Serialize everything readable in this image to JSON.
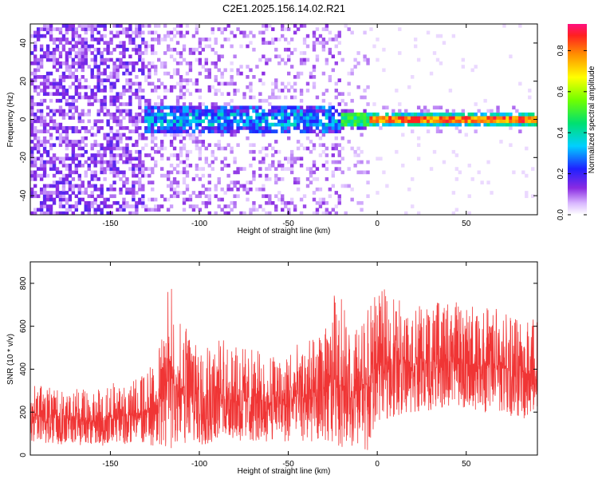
{
  "title": "C2E1.2025.156.14.02.R21",
  "chart_data": [
    {
      "type": "heatmap",
      "title": "C2E1.2025.156.14.02.R21",
      "xlabel": "Height of straight line (km)",
      "ylabel": "Frequency (Hz)",
      "xlim": [
        -195,
        90
      ],
      "ylim": [
        -50,
        50
      ],
      "x_ticks": [
        -150,
        -100,
        -50,
        0,
        50
      ],
      "y_ticks": [
        -40,
        -20,
        0,
        20,
        40
      ],
      "colorbar": {
        "label": "Normalized spectral amplitude",
        "range": [
          0,
          0.93
        ],
        "ticks": [
          0.0,
          0.2,
          0.4,
          0.6,
          0.8
        ]
      },
      "description_regions": [
        {
          "x_range": [
            -195,
            -130
          ],
          "freq_range": [
            -50,
            50
          ],
          "amplitude": 0.15
        },
        {
          "x_range": [
            -130,
            -20
          ],
          "freq_range": [
            -8,
            8
          ],
          "amplitude": 0.3
        },
        {
          "x_range": [
            -20,
            90
          ],
          "freq_range": [
            -2,
            2
          ],
          "amplitude": 0.85
        }
      ]
    },
    {
      "type": "line",
      "xlabel": "Height of straight line (km)",
      "ylabel": "SNR (10 * v/v)",
      "xlim": [
        -195,
        90
      ],
      "ylim": [
        0,
        900
      ],
      "x_ticks": [
        -150,
        -100,
        -50,
        0,
        50
      ],
      "y_ticks": [
        0,
        200,
        400,
        600,
        800
      ],
      "color": "#f03535",
      "envelope": {
        "x": [
          -195,
          -160,
          -130,
          -120,
          -117,
          -112,
          -100,
          -80,
          -60,
          -45,
          -30,
          -22,
          -15,
          -5,
          0,
          10,
          25,
          40,
          60,
          75,
          90
        ],
        "low": [
          60,
          40,
          50,
          30,
          20,
          40,
          40,
          60,
          60,
          60,
          60,
          40,
          30,
          20,
          150,
          180,
          200,
          220,
          200,
          180,
          150
        ],
        "high": [
          330,
          310,
          380,
          560,
          880,
          620,
          580,
          520,
          470,
          520,
          560,
          830,
          560,
          680,
          780,
          760,
          700,
          720,
          700,
          680,
          660
        ]
      }
    }
  ]
}
